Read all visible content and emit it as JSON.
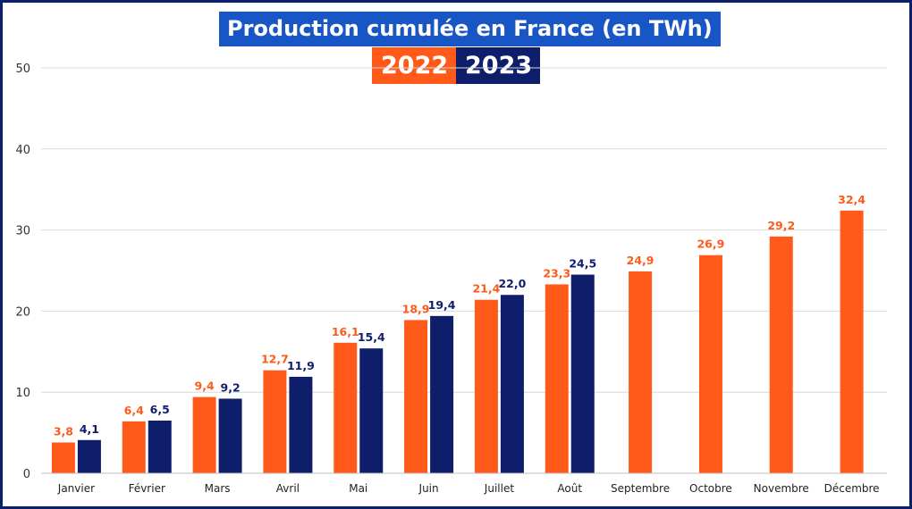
{
  "colors": {
    "s2022": "#ff5a1a",
    "s2023": "#0f1e6b",
    "title_bg": "#1756c4",
    "grid": "#d9d9d9",
    "frame": "#0a1f6e"
  },
  "chart_data": {
    "type": "bar",
    "title": "Production cumulée en France (en TWh)",
    "xlabel": "",
    "ylabel": "",
    "ylim": [
      0,
      50
    ],
    "yticks": [
      "0",
      "10",
      "20",
      "30",
      "40",
      "50"
    ],
    "grid": true,
    "legend_position": "top-center",
    "categories": [
      "Janvier",
      "Février",
      "Mars",
      "Avril",
      "Mai",
      "Juin",
      "Juillet",
      "Août",
      "Septembre",
      "Octobre",
      "Novembre",
      "Décembre"
    ],
    "series": [
      {
        "name": "2022",
        "values": [
          3.8,
          6.4,
          9.4,
          12.7,
          16.1,
          18.9,
          21.4,
          23.3,
          24.9,
          26.9,
          29.2,
          32.4
        ],
        "labels": [
          "3,8",
          "6,4",
          "9,4",
          "12,7",
          "16,1",
          "18,9",
          "21,4",
          "23,3",
          "24,9",
          "26,9",
          "29,2",
          "32,4"
        ]
      },
      {
        "name": "2023",
        "values": [
          4.1,
          6.5,
          9.2,
          11.9,
          15.4,
          19.4,
          22.0,
          24.5,
          null,
          null,
          null,
          null
        ],
        "labels": [
          "4,1",
          "6,5",
          "9,2",
          "11,9",
          "15,4",
          "19,4",
          "22,0",
          "24,5",
          null,
          null,
          null,
          null
        ]
      }
    ]
  }
}
